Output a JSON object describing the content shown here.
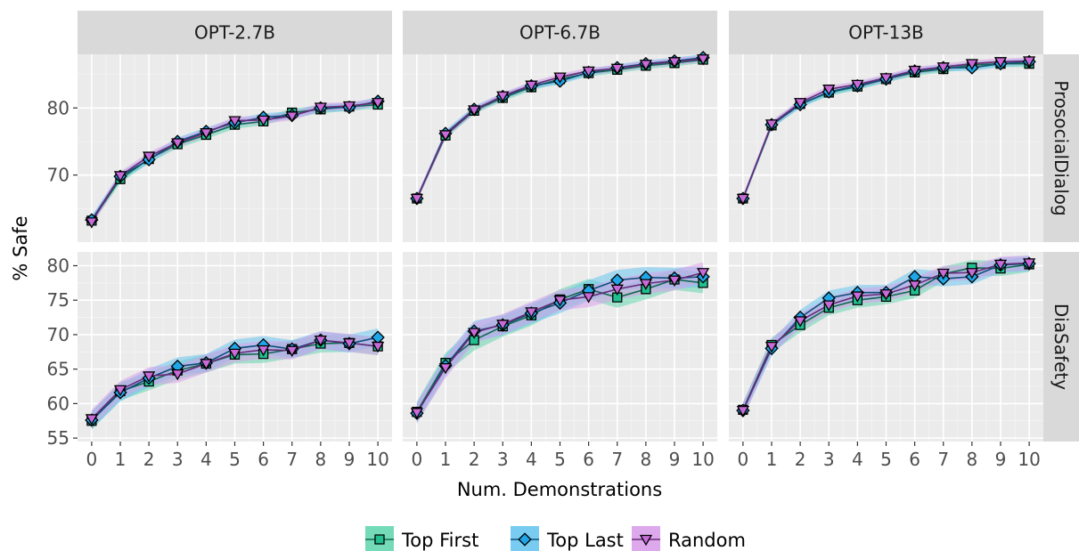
{
  "chart_data": {
    "type": "line",
    "xlabel": "Num. Demonstrations",
    "ylabel": "% Safe",
    "x": [
      0,
      1,
      2,
      3,
      4,
      5,
      6,
      7,
      8,
      9,
      10
    ],
    "columns": [
      "OPT-2.7B",
      "OPT-6.7B",
      "OPT-13B"
    ],
    "rows": [
      "ProsocialDialog",
      "DiaSafety"
    ],
    "rows_config": {
      "ProsocialDialog": {
        "ylim": [
          60,
          88
        ],
        "yticks": [
          70,
          80
        ]
      },
      "DiaSafety": {
        "ylim": [
          54.5,
          82
        ],
        "yticks": [
          55,
          60,
          65,
          70,
          75,
          80
        ]
      }
    },
    "grid": true,
    "legend_position": "bottom",
    "series_styles": [
      {
        "name": "Top First",
        "marker": "square",
        "fill": "#1fbf8f",
        "band": "#66d6b0"
      },
      {
        "name": "Top Last",
        "marker": "diamond",
        "fill": "#1ea6e6",
        "band": "#69c5f0"
      },
      {
        "name": "Random",
        "marker": "triangle-down",
        "fill": "#c86bd8",
        "band": "#d9a0ea"
      }
    ],
    "panels": [
      {
        "column": "OPT-2.7B",
        "row": "ProsocialDialog",
        "series": [
          {
            "name": "Top First",
            "values": [
              63.2,
              69.4,
              72.4,
              74.6,
              76.0,
              77.5,
              78.0,
              79.3,
              79.8,
              80.2,
              80.5
            ],
            "band": 0.6
          },
          {
            "name": "Top Last",
            "values": [
              63.3,
              69.8,
              72.3,
              75.0,
              76.5,
              77.8,
              78.6,
              78.9,
              80.0,
              80.1,
              81.0
            ],
            "band": 0.6
          },
          {
            "name": "Random",
            "values": [
              63.0,
              69.9,
              72.8,
              74.8,
              76.3,
              78.1,
              78.2,
              78.8,
              80.1,
              80.3,
              80.8
            ],
            "band": 0.6
          }
        ]
      },
      {
        "column": "OPT-6.7B",
        "row": "ProsocialDialog",
        "series": [
          {
            "name": "Top First",
            "values": [
              66.5,
              75.9,
              79.6,
              81.5,
              83.1,
              84.3,
              85.2,
              85.7,
              86.3,
              86.7,
              87.2
            ],
            "band": 0.5
          },
          {
            "name": "Top Last",
            "values": [
              66.5,
              76.2,
              79.8,
              81.7,
              83.3,
              84.0,
              85.3,
              86.0,
              86.6,
              87.0,
              87.5
            ],
            "band": 0.5
          },
          {
            "name": "Random",
            "values": [
              66.5,
              76.0,
              79.7,
              81.8,
              83.4,
              84.6,
              85.5,
              85.9,
              86.5,
              86.9,
              87.3
            ],
            "band": 0.5
          }
        ]
      },
      {
        "column": "OPT-13B",
        "row": "ProsocialDialog",
        "series": [
          {
            "name": "Top First",
            "values": [
              66.5,
              77.4,
              80.6,
              82.3,
              83.2,
              84.3,
              85.3,
              85.8,
              86.4,
              86.6,
              86.6
            ],
            "band": 0.5
          },
          {
            "name": "Top Last",
            "values": [
              66.5,
              77.5,
              80.5,
              82.4,
              83.3,
              84.3,
              85.5,
              86.0,
              86.0,
              86.6,
              86.9
            ],
            "band": 0.5
          },
          {
            "name": "Random",
            "values": [
              66.5,
              77.6,
              80.8,
              82.8,
              83.5,
              84.5,
              85.6,
              86.1,
              86.6,
              86.9,
              87.0
            ],
            "band": 0.5
          }
        ]
      },
      {
        "column": "OPT-2.7B",
        "row": "DiaSafety",
        "series": [
          {
            "name": "Top First",
            "values": [
              57.5,
              61.8,
              63.2,
              64.8,
              65.8,
              67.1,
              67.2,
              67.9,
              68.7,
              68.8,
              68.3
            ],
            "band": 1.3
          },
          {
            "name": "Top Last",
            "values": [
              57.6,
              61.6,
              63.7,
              65.4,
              65.9,
              68.0,
              68.5,
              67.9,
              69.2,
              68.7,
              69.6
            ],
            "band": 1.3
          },
          {
            "name": "Random",
            "values": [
              57.8,
              62.0,
              64.0,
              64.3,
              65.8,
              67.3,
              67.8,
              67.7,
              69.2,
              68.8,
              68.3
            ],
            "band": 1.3
          }
        ]
      },
      {
        "column": "OPT-6.7B",
        "row": "DiaSafety",
        "series": [
          {
            "name": "Top First",
            "values": [
              58.8,
              65.9,
              69.2,
              71.2,
              72.8,
              75.1,
              76.6,
              75.4,
              76.6,
              78.0,
              77.5
            ],
            "band": 1.5
          },
          {
            "name": "Top Last",
            "values": [
              58.6,
              65.5,
              70.5,
              71.4,
              73.1,
              74.6,
              76.4,
              77.9,
              78.3,
              78.2,
              78.4
            ],
            "band": 1.5
          },
          {
            "name": "Random",
            "values": [
              58.7,
              65.2,
              70.3,
              71.5,
              73.3,
              75.0,
              75.5,
              76.6,
              77.4,
              77.9,
              79.0
            ],
            "band": 1.5
          }
        ]
      },
      {
        "column": "OPT-13B",
        "row": "DiaSafety",
        "series": [
          {
            "name": "Top First",
            "values": [
              59.1,
              68.5,
              71.4,
              73.9,
              75.0,
              75.5,
              76.4,
              78.8,
              79.7,
              79.6,
              80.2
            ],
            "band": 1.1
          },
          {
            "name": "Top Last",
            "values": [
              59.0,
              68.0,
              72.5,
              75.3,
              76.1,
              76.1,
              78.4,
              78.1,
              78.4,
              80.1,
              80.3
            ],
            "band": 1.1
          },
          {
            "name": "Random",
            "values": [
              59.0,
              68.3,
              72.0,
              74.3,
              75.6,
              75.9,
              77.2,
              78.9,
              79.0,
              80.2,
              80.4
            ],
            "band": 1.1
          }
        ]
      }
    ]
  }
}
